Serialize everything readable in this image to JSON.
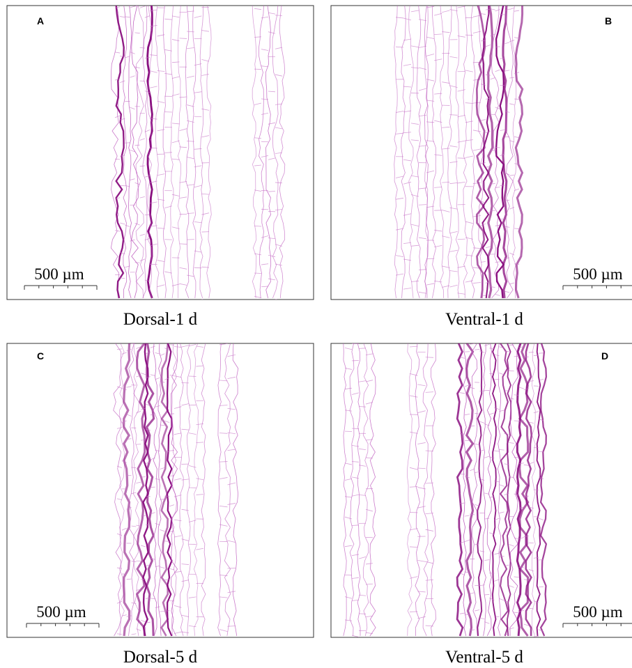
{
  "panels": [
    {
      "label": "A",
      "scale_bar": "500 µm",
      "caption": "Dorsal-1 d"
    },
    {
      "label": "B",
      "scale_bar": "500 µm",
      "caption": "Ventral-1 d"
    },
    {
      "label": "C",
      "scale_bar": "500 µm",
      "caption": "Dorsal-5 d"
    },
    {
      "label": "D",
      "scale_bar": "500 µm",
      "caption": "Ventral-5 d"
    }
  ]
}
